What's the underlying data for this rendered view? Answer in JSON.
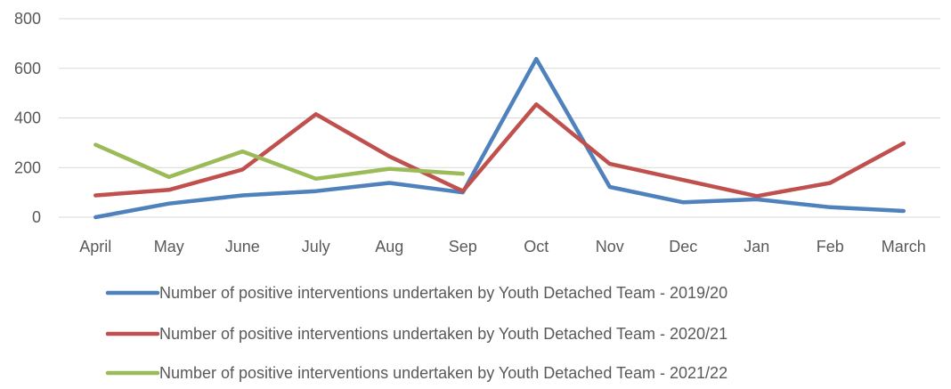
{
  "chart_data": {
    "type": "line",
    "title": "",
    "xlabel": "",
    "ylabel": "",
    "ylim": [
      0,
      800
    ],
    "yticks": [
      0,
      200,
      400,
      600,
      800
    ],
    "grid": true,
    "legend_position": "bottom",
    "categories": [
      "April",
      "May",
      "June",
      "July",
      "Aug",
      "Sep",
      "Oct",
      "Nov",
      "Dec",
      "Jan",
      "Feb",
      "March"
    ],
    "series": [
      {
        "name": "Number of positive interventions undertaken by Youth Detached Team - 2019/20",
        "color": "#4f81bd",
        "values": [
          0,
          55,
          88,
          105,
          138,
          100,
          638,
          122,
          60,
          72,
          40,
          25
        ]
      },
      {
        "name": "Number of positive interventions undertaken by Youth Detached Team - 2020/21",
        "color": "#c0504d",
        "values": [
          88,
          110,
          192,
          415,
          245,
          105,
          455,
          215,
          150,
          85,
          138,
          298
        ]
      },
      {
        "name": "Number of positive interventions undertaken by Youth Detached Team - 2021/22",
        "color": "#9bbb59",
        "values": [
          292,
          162,
          265,
          155,
          195,
          175,
          null,
          null,
          null,
          null,
          null,
          null
        ]
      }
    ]
  }
}
